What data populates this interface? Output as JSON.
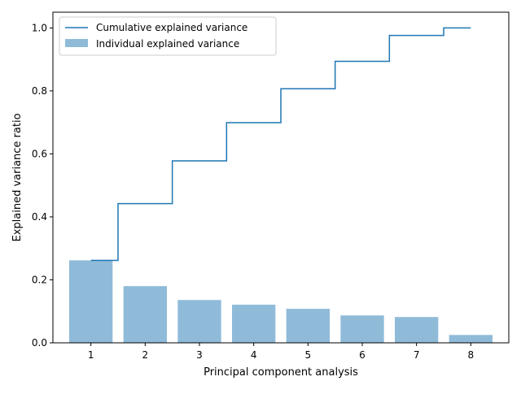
{
  "chart_data": {
    "type": "bar",
    "title": "",
    "xlabel": "Principal component analysis",
    "ylabel": "Explained variance ratio",
    "categories": [
      "1",
      "2",
      "3",
      "4",
      "5",
      "6",
      "7",
      "8"
    ],
    "xlim": [
      0.3,
      8.7
    ],
    "ylim": [
      0,
      1.05
    ],
    "yticks": [
      0.0,
      0.2,
      0.4,
      0.6,
      0.8,
      1.0
    ],
    "ytick_labels": [
      "0.0",
      "0.2",
      "0.4",
      "0.6",
      "0.8",
      "1.0"
    ],
    "grid": false,
    "legend_position": "top-left",
    "series": [
      {
        "name": "Individual explained variance",
        "type": "bar",
        "color": "#8fbbd9",
        "values": [
          0.262,
          0.18,
          0.136,
          0.121,
          0.108,
          0.087,
          0.082,
          0.025
        ]
      },
      {
        "name": "Cumulative explained variance",
        "type": "step",
        "color": "#1f77b4",
        "values": [
          0.262,
          0.442,
          0.578,
          0.699,
          0.807,
          0.894,
          0.976,
          1.0
        ]
      }
    ]
  }
}
